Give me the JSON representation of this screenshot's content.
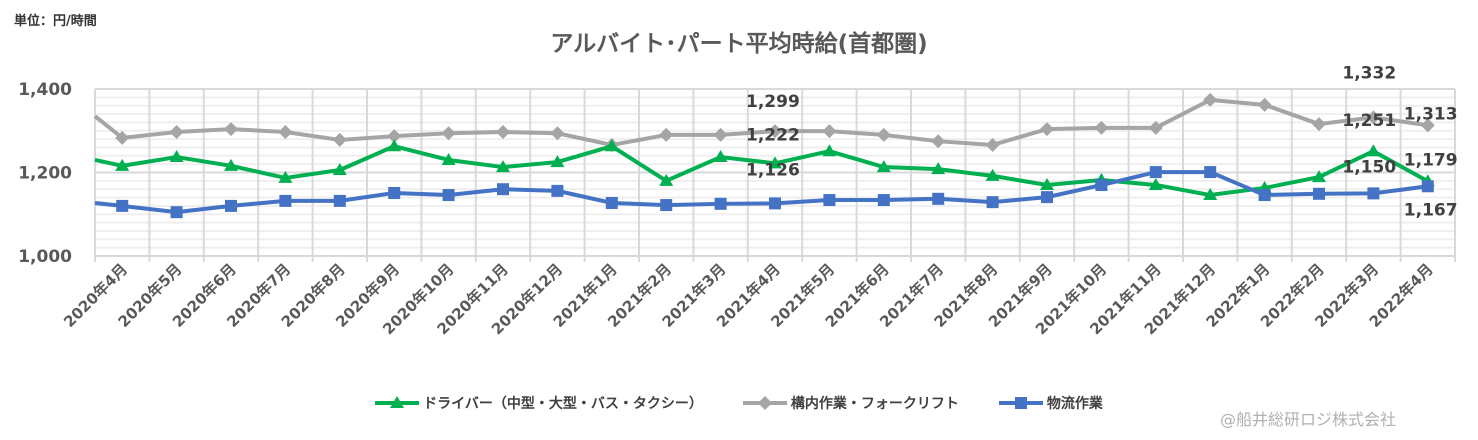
{
  "unit_label": "単位：円/時間",
  "source": "@船井総研ロジ株式会社",
  "chart_data": {
    "type": "line",
    "title": "アルバイト･パート平均時給(首都圏)",
    "xlabel": "",
    "ylabel": "",
    "ylim": [
      1000,
      1400
    ],
    "yticks": [
      1000,
      1200,
      1400
    ],
    "ytick_labels": [
      "1,000",
      "1,200",
      "1,400"
    ],
    "grid": true,
    "legend_position": "bottom",
    "categories": [
      "2020年4月",
      "2020年5月",
      "2020年6月",
      "2020年7月",
      "2020年8月",
      "2020年9月",
      "2020年10月",
      "2020年11月",
      "2020年12月",
      "2021年1月",
      "2021年2月",
      "2021年3月",
      "2021年4月",
      "2021年5月",
      "2021年6月",
      "2021年7月",
      "2021年8月",
      "2021年9月",
      "2021年10月",
      "2021年11月",
      "2021年12月",
      "2022年1月",
      "2022年2月",
      "2022年3月",
      "2022年4月"
    ],
    "series": [
      {
        "name": "ドライバー（中型・大型・バス・タクシー）",
        "color": "#00B050",
        "marker": "triangle",
        "leading_value": 1230,
        "values": [
          1216,
          1237,
          1216,
          1187,
          1206,
          1263,
          1230,
          1213,
          1225,
          1263,
          1180,
          1237,
          1222,
          1251,
          1213,
          1208,
          1192,
          1170,
          1182,
          1170,
          1146,
          1163,
          1189,
          1251,
          1179
        ]
      },
      {
        "name": "構内作業・フォークリフト",
        "color": "#A5A5A5",
        "marker": "diamond",
        "leading_value": 1335,
        "values": [
          1283,
          1297,
          1304,
          1297,
          1278,
          1287,
          1294,
          1297,
          1294,
          1266,
          1290,
          1290,
          1299,
          1299,
          1290,
          1275,
          1266,
          1304,
          1307,
          1307,
          1374,
          1362,
          1316,
          1332,
          1313
        ]
      },
      {
        "name": "物流作業",
        "color": "#4472C4",
        "marker": "square",
        "leading_value": 1127,
        "values": [
          1120,
          1105,
          1120,
          1132,
          1132,
          1151,
          1146,
          1160,
          1156,
          1127,
          1122,
          1125,
          1126,
          1134,
          1134,
          1137,
          1129,
          1141,
          1170,
          1201,
          1201,
          1146,
          1149,
          1150,
          1167
        ]
      }
    ],
    "data_labels": [
      {
        "category": "2021年4月",
        "series": 1,
        "text": "1,299"
      },
      {
        "category": "2021年4月",
        "series": 0,
        "text": "1,222"
      },
      {
        "category": "2021年4月",
        "series": 2,
        "text": "1,126"
      },
      {
        "category": "2022年3月",
        "series": 1,
        "text": "1,332"
      },
      {
        "category": "2022年3月",
        "series": 0,
        "text": "1,251"
      },
      {
        "category": "2022年3月",
        "series": 2,
        "text": "1,150"
      },
      {
        "category": "2022年4月",
        "series": 1,
        "text": "1,313"
      },
      {
        "category": "2022年4月",
        "series": 0,
        "text": "1,179"
      },
      {
        "category": "2022年4月",
        "series": 2,
        "text": "1,167"
      }
    ]
  }
}
